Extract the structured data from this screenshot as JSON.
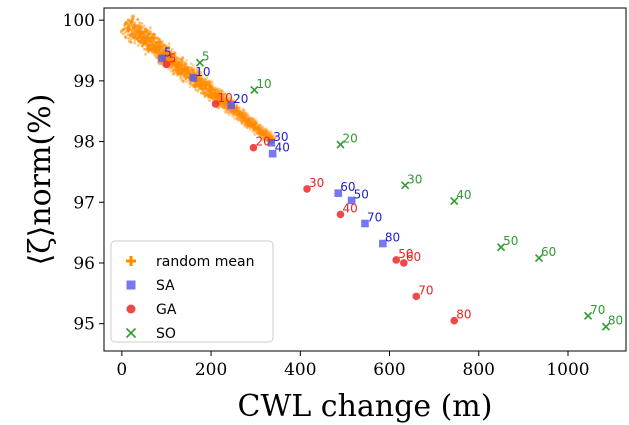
{
  "chart_data": {
    "type": "scatter",
    "xlabel": "CWL change (m)",
    "ylabel": "⟨ζ⟩norm(%)",
    "xlim": [
      -40,
      1130
    ],
    "ylim": [
      94.55,
      100.2
    ],
    "xticks": [
      0,
      200,
      400,
      600,
      800,
      1000
    ],
    "yticks": [
      95,
      96,
      97,
      98,
      99,
      100
    ],
    "grid": false,
    "legend_position": "bottom-left",
    "random_cloud": {
      "color": "#ff8c00",
      "start": [
        8,
        99.95
      ],
      "end": [
        340,
        98.0
      ]
    },
    "series": [
      {
        "name": "random mean",
        "marker": "plus",
        "color": "#ff8c00",
        "points": []
      },
      {
        "name": "SA",
        "marker": "square",
        "color": "#5555ee",
        "label_color": "#2222cc",
        "points": [
          {
            "x": 90,
            "y": 99.37,
            "label": "5"
          },
          {
            "x": 160,
            "y": 99.05,
            "label": "10"
          },
          {
            "x": 245,
            "y": 98.6,
            "label": "20"
          },
          {
            "x": 335,
            "y": 97.98,
            "label": "30"
          },
          {
            "x": 338,
            "y": 97.8,
            "label": "40"
          },
          {
            "x": 485,
            "y": 97.15,
            "label": "60"
          },
          {
            "x": 515,
            "y": 97.03,
            "label": "50"
          },
          {
            "x": 545,
            "y": 96.65,
            "label": "70"
          },
          {
            "x": 585,
            "y": 96.32,
            "label": "80"
          }
        ]
      },
      {
        "name": "GA",
        "marker": "circle",
        "color": "#ee3333",
        "label_color": "#ee2222",
        "points": [
          {
            "x": 100,
            "y": 99.27,
            "label": "5"
          },
          {
            "x": 210,
            "y": 98.62,
            "label": "10"
          },
          {
            "x": 295,
            "y": 97.9,
            "label": "20"
          },
          {
            "x": 415,
            "y": 97.22,
            "label": "30"
          },
          {
            "x": 490,
            "y": 96.8,
            "label": "40"
          },
          {
            "x": 615,
            "y": 96.05,
            "label": "50"
          },
          {
            "x": 632,
            "y": 96.0,
            "label": "60"
          },
          {
            "x": 660,
            "y": 95.45,
            "label": "70"
          },
          {
            "x": 745,
            "y": 95.05,
            "label": "80"
          }
        ]
      },
      {
        "name": "SO",
        "marker": "x",
        "color": "#2e9b2e",
        "label_color": "#2e9b2e",
        "points": [
          {
            "x": 175,
            "y": 99.3,
            "label": "5"
          },
          {
            "x": 297,
            "y": 98.85,
            "label": "10"
          },
          {
            "x": 490,
            "y": 97.95,
            "label": "20"
          },
          {
            "x": 635,
            "y": 97.28,
            "label": "30"
          },
          {
            "x": 745,
            "y": 97.02,
            "label": "40"
          },
          {
            "x": 850,
            "y": 96.26,
            "label": "50"
          },
          {
            "x": 935,
            "y": 96.08,
            "label": "60"
          },
          {
            "x": 1045,
            "y": 95.13,
            "label": "70"
          },
          {
            "x": 1085,
            "y": 94.95,
            "label": "80"
          }
        ]
      }
    ]
  }
}
